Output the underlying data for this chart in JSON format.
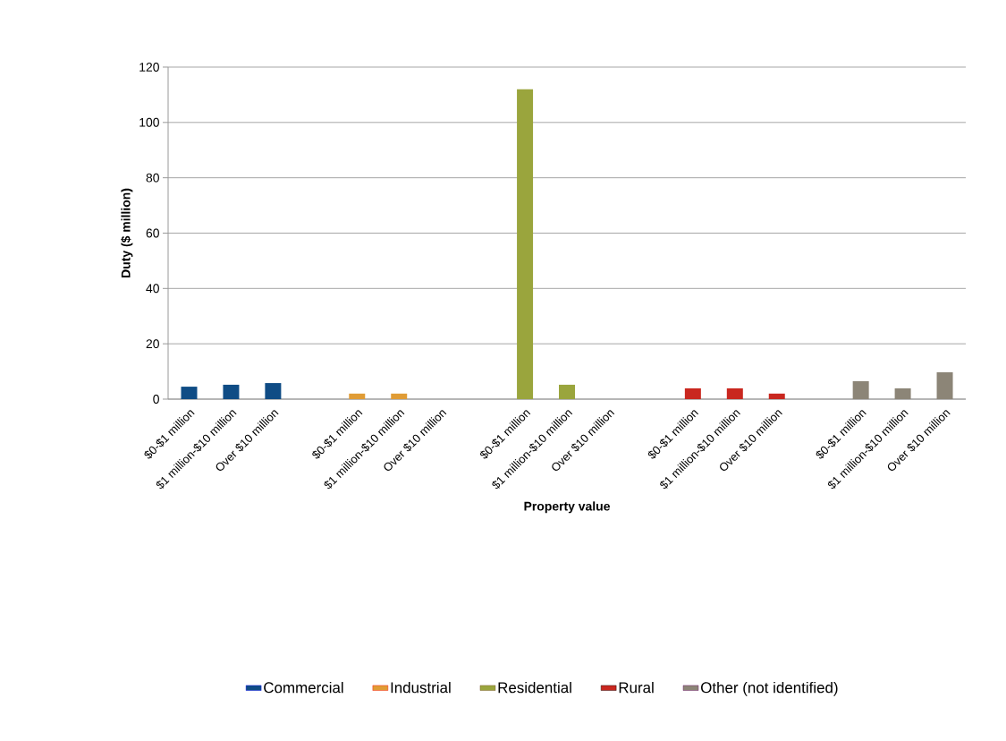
{
  "chart_data": {
    "type": "bar",
    "xlabel": "Property value",
    "ylabel": "Duty ($ million)",
    "categories": [
      "$0-$1 million",
      "$1 million-$10 million",
      "Over $10 million",
      null,
      "$0-$1 million",
      "$1 million-$10 million",
      "Over $10 million",
      null,
      "$0-$1 million",
      "$1 million-$10 million",
      "Over $10 million",
      null,
      "$0-$1 million",
      "$1 million-$10 million",
      "Over $10 million",
      null,
      "$0-$1 million",
      "$1 million-$10 million",
      "Over $10 million"
    ],
    "series": [
      {
        "name": "Commercial",
        "color": "#0f4c85",
        "values": [
          4.5,
          5.2,
          5.8,
          null,
          null,
          null,
          null,
          null,
          null,
          null,
          null,
          null,
          null,
          null,
          null,
          null,
          null,
          null,
          null
        ]
      },
      {
        "name": "Industrial",
        "color": "#e09c35",
        "values": [
          null,
          null,
          null,
          null,
          2.0,
          2.0,
          null,
          null,
          null,
          null,
          null,
          null,
          null,
          null,
          null,
          null,
          null,
          null,
          null
        ]
      },
      {
        "name": "Residential",
        "color": "#9aa53d",
        "values": [
          null,
          null,
          null,
          null,
          null,
          null,
          null,
          null,
          112,
          5.2,
          null,
          null,
          null,
          null,
          null,
          null,
          null,
          null,
          null
        ]
      },
      {
        "name": "Rural",
        "color": "#c9271f",
        "values": [
          null,
          null,
          null,
          null,
          null,
          null,
          null,
          null,
          null,
          null,
          null,
          null,
          3.9,
          3.9,
          2.0,
          null,
          null,
          null,
          null
        ]
      },
      {
        "name": "Other (not identified)",
        "color": "#8c8577",
        "values": [
          null,
          null,
          null,
          null,
          null,
          null,
          null,
          null,
          null,
          null,
          null,
          null,
          null,
          null,
          null,
          null,
          6.5,
          3.9,
          9.7
        ]
      }
    ],
    "ylim": [
      0,
      120
    ],
    "yticks": [
      0,
      20,
      40,
      60,
      80,
      100,
      120
    ],
    "grid": "y",
    "legend": "bottom"
  }
}
